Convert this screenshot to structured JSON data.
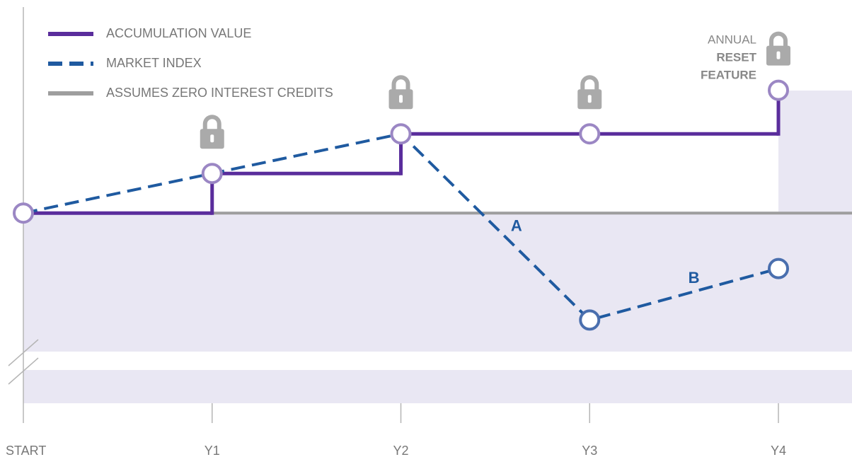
{
  "chart_data": {
    "type": "line",
    "step": true,
    "categories": [
      "START",
      "Y1",
      "Y2",
      "Y3",
      "Y4"
    ],
    "ylim": [
      0,
      100
    ],
    "series": [
      {
        "name": "ACCUMULATION VALUE",
        "color": "#5a2d9c",
        "style": "solid",
        "values": [
          48,
          58,
          68,
          68,
          79
        ]
      },
      {
        "name": "MARKET INDEX",
        "color": "#1f5aa0",
        "style": "dashed",
        "values": [
          48,
          58,
          68,
          21,
          34
        ]
      },
      {
        "name": "ASSUMES ZERO INTEREST CREDITS",
        "color": "#9e9e9e",
        "style": "solid",
        "values": [
          48,
          48,
          48,
          48,
          48
        ]
      }
    ],
    "annotations": [
      "A",
      "B"
    ],
    "lock_label": [
      "ANNUAL",
      "RESET",
      "FEATURE"
    ]
  }
}
